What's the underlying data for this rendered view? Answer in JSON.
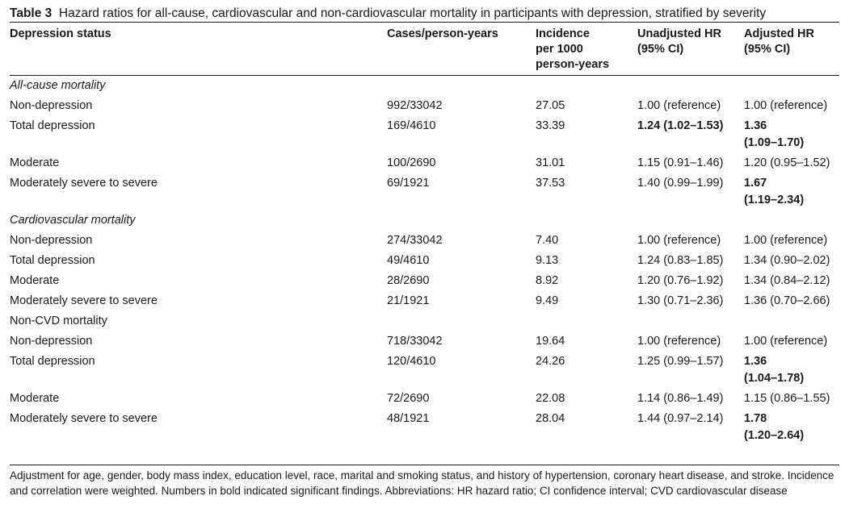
{
  "caption": {
    "label": "Table 3",
    "text": "Hazard ratios for all-cause, cardiovascular and non-cardiovascular mortality in participants with depression, stratified by severity"
  },
  "columns": {
    "status": "Depression status",
    "cases": "Cases/person-years",
    "incidence_1": "Incidence",
    "incidence_2": "per 1000",
    "incidence_3": "person-years",
    "unadj_1": "Unadjusted HR",
    "unadj_2": "(95% CI)",
    "adj_1": "Adjusted HR",
    "adj_2": "(95% CI)"
  },
  "sections": [
    {
      "title": "All-cause mortality",
      "rows": [
        {
          "status": "Non-depression",
          "cases": "992/33042",
          "incidence": "27.05",
          "unadj": "1.00 (reference)",
          "adj_1": "1.00 (reference)",
          "adj_2": ""
        },
        {
          "status": "Total depression",
          "cases": "169/4610",
          "incidence": "33.39",
          "unadj": "1.24 (1.02–1.53)",
          "adj_1": "1.36",
          "adj_2": "(1.09–1.70)"
        },
        {
          "status": "Moderate",
          "cases": "100/2690",
          "incidence": "31.01",
          "unadj": "1.15 (0.91–1.46)",
          "adj_1": "1.20 (0.95–1.52)",
          "adj_2": ""
        },
        {
          "status": "Moderately severe to severe",
          "cases": "69/1921",
          "incidence": "37.53",
          "unadj": "1.40 (0.99–1.99)",
          "adj_1": "1.67",
          "adj_2": "(1.19–2.34)"
        }
      ]
    },
    {
      "title": "Cardiovascular mortality",
      "rows": [
        {
          "status": "Non-depression",
          "cases": "274/33042",
          "incidence": "7.40",
          "unadj": "1.00 (reference)",
          "adj_1": "1.00 (reference)",
          "adj_2": ""
        },
        {
          "status": "Total depression",
          "cases": "49/4610",
          "incidence": "9.13",
          "unadj": "1.24 (0.83–1.85)",
          "adj_1": "1.34 (0.90–2.02)",
          "adj_2": ""
        },
        {
          "status": "Moderate",
          "cases": "28/2690",
          "incidence": "8.92",
          "unadj": "1.20 (0.76–1.92)",
          "adj_1": "1.34 (0.84–2.12)",
          "adj_2": ""
        },
        {
          "status": "Moderately severe to severe",
          "cases": "21/1921",
          "incidence": "9.49",
          "unadj": "1.30 (0.71–2.36)",
          "adj_1": "1.36 (0.70–2.66)",
          "adj_2": ""
        }
      ]
    },
    {
      "title": "Non-CVD mortality",
      "rows": [
        {
          "status": "Non-depression",
          "cases": "718/33042",
          "incidence": "19.64",
          "unadj": "1.00 (reference)",
          "adj_1": "1.00 (reference)",
          "adj_2": ""
        },
        {
          "status": "Total depression",
          "cases": "120/4610",
          "incidence": "24.26",
          "unadj": "1.25 (0.99–1.57)",
          "adj_1": "1.36",
          "adj_2": "(1.04–1.78)"
        },
        {
          "status": "Moderate",
          "cases": "72/2690",
          "incidence": "22.08",
          "unadj": "1.14 (0.86–1.49)",
          "adj_1": "1.15 (0.86–1.55)",
          "adj_2": ""
        },
        {
          "status": "Moderately severe to severe",
          "cases": "48/1921",
          "incidence": "28.04",
          "unadj": "1.44 (0.97–2.14)",
          "adj_1": "1.78",
          "adj_2": "(1.20–2.64)"
        }
      ]
    }
  ],
  "footnote": "Adjustment for age, gender, body mass index, education level, race, marital and smoking status, and history of hypertension, coronary heart disease, and stroke. Incidence and correlation were weighted. Numbers in bold indicated significant findings. Abbreviations: HR hazard ratio; CI confidence interval; CVD cardiovascular disease"
}
